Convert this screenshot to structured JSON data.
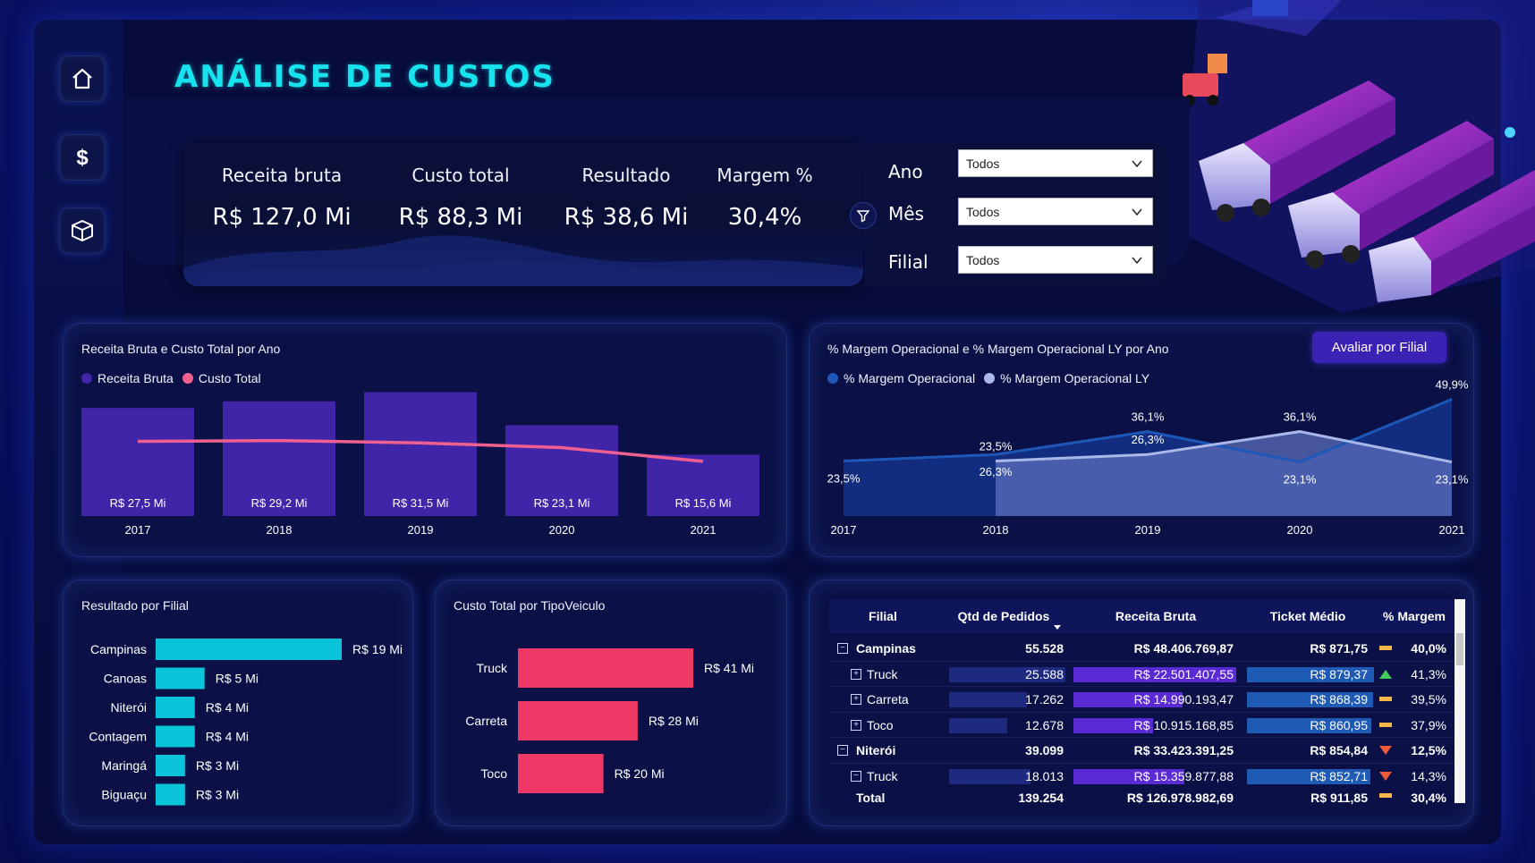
{
  "header": {
    "title": "ANÁLISE DE CUSTOS"
  },
  "sidebar": {
    "items": [
      {
        "icon": "home-icon"
      },
      {
        "icon": "dollar-icon"
      },
      {
        "icon": "box-icon"
      }
    ]
  },
  "kpis": [
    {
      "label": "Receita bruta",
      "value": "R$ 127,0 Mi"
    },
    {
      "label": "Custo total",
      "value": "R$ 88,3 Mi"
    },
    {
      "label": "Resultado",
      "value": "R$ 38,6 Mi"
    },
    {
      "label": "Margem %",
      "value": "30,4%"
    }
  ],
  "filters": [
    {
      "label": "Ano",
      "value": "Todos"
    },
    {
      "label": "Mês",
      "value": "Todos"
    },
    {
      "label": "Filial",
      "value": "Todos"
    }
  ],
  "button_avaliar": "Avaliar por Filial",
  "colors": {
    "accent": "#17e3ee",
    "receita": "#4025a8",
    "custo": "#f0608e",
    "margem": "#1d57b8",
    "margem_ly": "#a9b8e8",
    "filial_bar": "#0cc4da",
    "veiculo_bar": "#ef3866"
  },
  "chart_data": [
    {
      "type": "bar",
      "title": "Receita Bruta e Custo Total por Ano",
      "categories": [
        "2017",
        "2018",
        "2019",
        "2020",
        "2021"
      ],
      "series": [
        {
          "name": "Receita Bruta",
          "values": [
            27.5,
            29.2,
            31.5,
            23.1,
            15.6
          ],
          "labels": [
            "R$ 27,5 Mi",
            "R$ 29,2 Mi",
            "R$ 31,5 Mi",
            "R$ 23,1 Mi",
            "R$ 15,6 Mi"
          ]
        },
        {
          "name": "Custo Total",
          "values": [
            19.0,
            19.2,
            18.6,
            17.4,
            13.9
          ]
        }
      ],
      "ylim": [
        0,
        33
      ]
    },
    {
      "type": "area",
      "title": "% Margem Operacional e % Margem Operacional LY por Ano",
      "categories": [
        "2017",
        "2018",
        "2019",
        "2020",
        "2021"
      ],
      "series": [
        {
          "name": "% Margem Operacional",
          "values": [
            23.5,
            26.3,
            36.1,
            23.1,
            49.9
          ],
          "labels": [
            "23,5%",
            "26,3%",
            "36,1%",
            "23,1%",
            "49,9%"
          ]
        },
        {
          "name": "% Margem Operacional LY",
          "values": [
            null,
            23.5,
            26.3,
            36.1,
            23.1
          ],
          "labels": [
            "",
            "23,5%",
            "26,3%",
            "36,1%",
            "23,1%"
          ]
        }
      ],
      "ylim": [
        0,
        55
      ]
    },
    {
      "type": "bar",
      "title": "Resultado por Filial",
      "categories": [
        "Campinas",
        "Canoas",
        "Niterói",
        "Contagem",
        "Maringá",
        "Biguaçu"
      ],
      "values": [
        19,
        5,
        4,
        4,
        3,
        3
      ],
      "labels": [
        "R$ 19 Mi",
        "R$ 5 Mi",
        "R$ 4 Mi",
        "R$ 4 Mi",
        "R$ 3 Mi",
        "R$ 3 Mi"
      ]
    },
    {
      "type": "bar",
      "title": "Custo Total por TipoVeiculo",
      "categories": [
        "Truck",
        "Carreta",
        "Toco"
      ],
      "values": [
        41,
        28,
        20
      ],
      "labels": [
        "R$ 41 Mi",
        "R$ 28 Mi",
        "R$ 20 Mi"
      ]
    },
    {
      "type": "table",
      "columns": [
        "Filial",
        "Qtd de Pedidos",
        "Receita Bruta",
        "Ticket Médio",
        "% Margem"
      ],
      "rows": [
        {
          "filial": "Campinas",
          "level": 0,
          "expander": "⊟",
          "pedidos": "55.528",
          "receita": "R$ 48.406.769,87",
          "ticket": "R$ 871,75",
          "margem": "40,0%",
          "trend": "flat",
          "p": 0,
          "r": 0,
          "t": 0
        },
        {
          "filial": "Truck",
          "level": 1,
          "expander": "⊞",
          "pedidos": "25.588",
          "receita": "R$ 22.501.407,55",
          "ticket": "R$ 879,37",
          "margem": "41,3%",
          "trend": "up",
          "p": 1.0,
          "r": 1.0,
          "t": 1.0
        },
        {
          "filial": "Carreta",
          "level": 1,
          "expander": "⊞",
          "pedidos": "17.262",
          "receita": "R$ 14.990.193,47",
          "ticket": "R$ 868,39",
          "margem": "39,5%",
          "trend": "flat",
          "p": 0.67,
          "r": 0.67,
          "t": 0.99
        },
        {
          "filial": "Toco",
          "level": 1,
          "expander": "⊞",
          "pedidos": "12.678",
          "receita": "R$ 10.915.168,85",
          "ticket": "R$ 860,95",
          "margem": "37,9%",
          "trend": "flat",
          "p": 0.5,
          "r": 0.49,
          "t": 0.98
        },
        {
          "filial": "Niterói",
          "level": 0,
          "expander": "⊟",
          "pedidos": "39.099",
          "receita": "R$ 33.423.391,25",
          "ticket": "R$ 854,84",
          "margem": "12,5%",
          "trend": "down",
          "p": 0,
          "r": 0,
          "t": 0
        },
        {
          "filial": "Truck",
          "level": 1,
          "expander": "⊟",
          "pedidos": "18.013",
          "receita": "R$ 15.359.877,88",
          "ticket": "R$ 852,71",
          "margem": "14,3%",
          "trend": "down",
          "p": 0.7,
          "r": 0.68,
          "t": 0.97
        }
      ],
      "total": {
        "filial": "Total",
        "pedidos": "139.254",
        "receita": "R$ 126.978.982,69",
        "ticket": "R$ 911,85",
        "margem": "30,4%",
        "trend": "flat"
      }
    }
  ]
}
